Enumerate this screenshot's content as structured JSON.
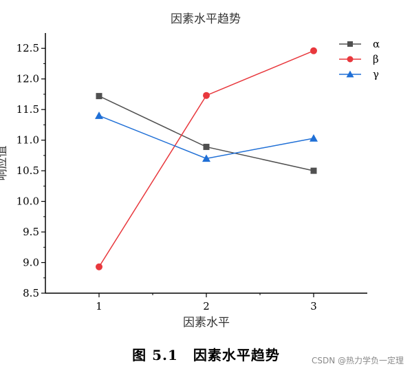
{
  "chart_data": {
    "type": "line",
    "title": "因素水平趋势",
    "xlabel": "因素水平",
    "ylabel": "响应值",
    "categories": [
      "1",
      "2",
      "3"
    ],
    "xlim": [
      0.5,
      3.5
    ],
    "ylim": [
      8.5,
      12.75
    ],
    "yticks": [
      "8.5",
      "9.0",
      "9.5",
      "10.0",
      "10.5",
      "11.0",
      "11.5",
      "12.0",
      "12.5"
    ],
    "legend_position": "top-right",
    "grid": false,
    "series": [
      {
        "name": "α",
        "color": "#505050",
        "marker": "square",
        "values": [
          11.72,
          10.89,
          10.5
        ]
      },
      {
        "name": "β",
        "color": "#e8383d",
        "marker": "circle",
        "values": [
          8.93,
          11.73,
          12.46
        ]
      },
      {
        "name": "γ",
        "color": "#1f6fd6",
        "marker": "triangle",
        "values": [
          11.4,
          10.7,
          11.03
        ]
      }
    ]
  },
  "figure_caption": {
    "number": "图 5.1",
    "text": "因素水平趋势"
  },
  "watermark": "CSDN @热力学负一定理"
}
